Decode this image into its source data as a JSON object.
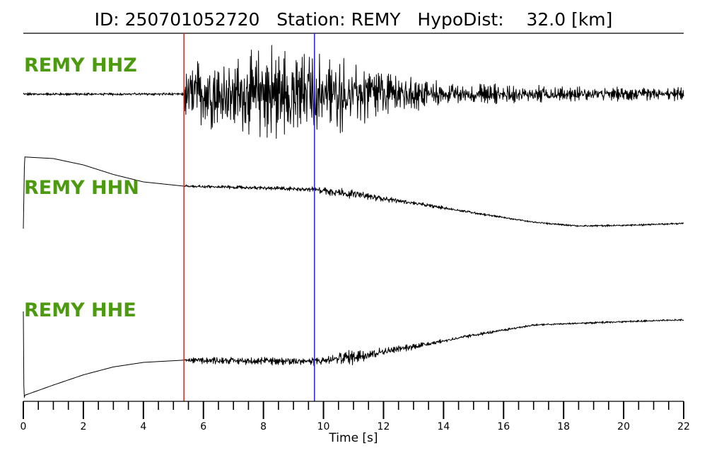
{
  "header": {
    "id_label": "ID:",
    "id_value": "250701052720",
    "station_label": "Station:",
    "station_value": "REMY",
    "hypodist_label": "HypoDist:",
    "hypodist_value": "32.0",
    "hypodist_unit": "[km]"
  },
  "colors": {
    "label_green": "#4c9a0e",
    "p_pick": "#e8231d",
    "s_pick": "#2222dd",
    "trace": "#000000"
  },
  "chart_data": {
    "type": "line",
    "xlabel": "Time [s]",
    "xlim": [
      0,
      22
    ],
    "major_ticks": [
      0,
      2,
      4,
      6,
      8,
      10,
      12,
      14,
      16,
      18,
      20,
      22
    ],
    "minor_tick_step": 0.5,
    "picks": [
      {
        "phase": "P",
        "time": 5.35,
        "color": "#e8231d"
      },
      {
        "phase": "S",
        "time": 9.7,
        "color": "#2222dd"
      }
    ],
    "series": [
      {
        "name": "REMY HHZ",
        "baseline_time": [
          0,
          2,
          4,
          5.35,
          5.4,
          8,
          10,
          14,
          16,
          18,
          20,
          22
        ],
        "baseline_level": [
          0,
          0,
          0,
          0,
          0,
          0,
          0,
          0,
          0,
          0,
          0,
          0
        ],
        "noise_time": [
          0,
          5.35,
          5.4,
          7,
          8.5,
          10,
          12,
          14,
          16,
          18,
          20,
          22
        ],
        "noise_amp": [
          0.03,
          0.03,
          0.65,
          0.8,
          1.0,
          0.85,
          0.5,
          0.22,
          0.2,
          0.15,
          0.13,
          0.12
        ]
      },
      {
        "name": "REMY HHN",
        "baseline_time": [
          0,
          0.04,
          1,
          2,
          3,
          4,
          5.35,
          7,
          9.7,
          11,
          13,
          15,
          17,
          18.5,
          20,
          22
        ],
        "baseline_level": [
          -0.6,
          0.75,
          0.72,
          0.6,
          0.42,
          0.28,
          0.2,
          0.18,
          0.14,
          0.05,
          -0.12,
          -0.3,
          -0.48,
          -0.55,
          -0.54,
          -0.5
        ],
        "noise_time": [
          0,
          5.35,
          5.4,
          9.7,
          10,
          11,
          13,
          16,
          22
        ],
        "noise_amp": [
          0,
          0,
          0.03,
          0.05,
          0.09,
          0.09,
          0.04,
          0.02,
          0.02
        ]
      },
      {
        "name": "REMY HHE",
        "baseline_time": [
          0,
          0.02,
          0.05,
          1,
          2,
          3,
          4,
          5.35,
          9.7,
          11,
          13,
          15,
          17,
          20,
          22
        ],
        "baseline_level": [
          0.5,
          -1.05,
          -0.98,
          -0.8,
          -0.62,
          -0.48,
          -0.4,
          -0.36,
          -0.38,
          -0.3,
          -0.12,
          0.08,
          0.26,
          0.32,
          0.35
        ],
        "noise_time": [
          0,
          5.35,
          5.4,
          9.7,
          11,
          12,
          14,
          17,
          22
        ],
        "noise_amp": [
          0,
          0,
          0.06,
          0.08,
          0.14,
          0.08,
          0.04,
          0.02,
          0.02
        ]
      }
    ]
  }
}
